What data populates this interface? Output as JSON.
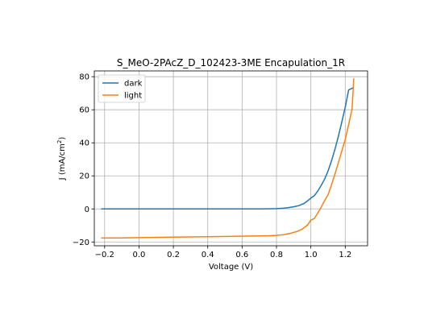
{
  "chart_data": {
    "type": "line",
    "title": "S_MeO-2PAcZ_D_102423-3ME Encapulation_1R",
    "xlabel": "Voltage (V)",
    "ylabel": {
      "prefix": "J (mA/cm",
      "sup": "2",
      "suffix": ")"
    },
    "xlim": [
      -0.26,
      1.33
    ],
    "ylim": [
      -22.3,
      83.5
    ],
    "xticks": [
      -0.2,
      0.0,
      0.2,
      0.4,
      0.6,
      0.8,
      1.0,
      1.2
    ],
    "xtick_labels": [
      "−0.2",
      "0.0",
      "0.2",
      "0.4",
      "0.6",
      "0.8",
      "1.0",
      "1.2"
    ],
    "yticks": [
      -20,
      0,
      20,
      40,
      60,
      80
    ],
    "ytick_labels": [
      "−20",
      "0",
      "20",
      "40",
      "60",
      "80"
    ],
    "grid": true,
    "legend_position": "upper-left",
    "series": [
      {
        "name": "dark",
        "color": "#1f77b4",
        "x": [
          -0.22,
          -0.1,
          0.0,
          0.2,
          0.4,
          0.6,
          0.7,
          0.76,
          0.8,
          0.84,
          0.87,
          0.9,
          0.93,
          0.96,
          0.98,
          1.0,
          1.02,
          1.04,
          1.06,
          1.08,
          1.1,
          1.12,
          1.14,
          1.16,
          1.18,
          1.2,
          1.22,
          1.23,
          1.25
        ],
        "y": [
          0.0,
          0.0,
          0.0,
          0.0,
          0.0,
          0.0,
          0.05,
          0.1,
          0.2,
          0.4,
          0.8,
          1.3,
          2.0,
          3.3,
          4.8,
          6.5,
          8.0,
          10.8,
          14.2,
          18.0,
          23.0,
          29.0,
          36.0,
          44.0,
          52.5,
          61.5,
          72.0,
          72.5,
          73.5
        ]
      },
      {
        "name": "light",
        "color": "#ff7f0e",
        "x": [
          -0.22,
          -0.1,
          0.0,
          0.2,
          0.4,
          0.6,
          0.7,
          0.76,
          0.8,
          0.84,
          0.88,
          0.92,
          0.95,
          0.98,
          1.0,
          1.02,
          1.04,
          1.06,
          1.08,
          1.1,
          1.12,
          1.14,
          1.16,
          1.18,
          1.2,
          1.22,
          1.24,
          1.25
        ],
        "y": [
          -17.6,
          -17.5,
          -17.4,
          -17.1,
          -16.8,
          -16.5,
          -16.3,
          -16.2,
          -16.0,
          -15.6,
          -14.8,
          -13.6,
          -12.2,
          -9.8,
          -6.8,
          -5.8,
          -2.5,
          1.0,
          5.0,
          8.5,
          14.5,
          21.0,
          28.0,
          35.0,
          42.0,
          51.0,
          60.5,
          79.0
        ]
      }
    ]
  }
}
